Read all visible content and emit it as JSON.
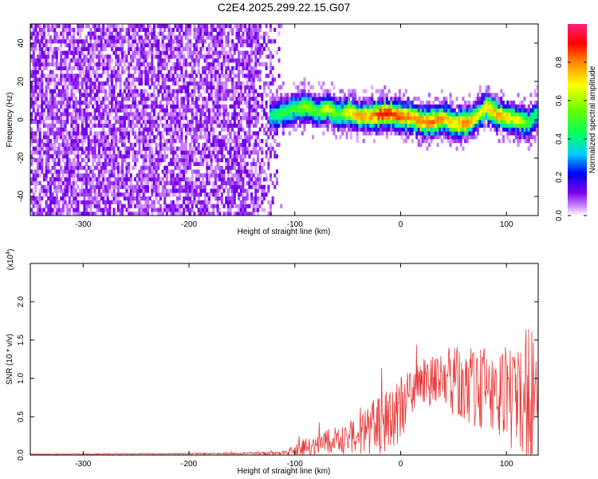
{
  "figure_title": "C2E4.2025.299.22.15.G07",
  "chart_data": [
    {
      "type": "heatmap",
      "title": "C2E4.2025.299.22.15.G07",
      "xlabel": "Height of straight line (km)",
      "ylabel": "Frequency (Hz)",
      "xlim": [
        -350,
        130
      ],
      "ylim": [
        -50,
        50
      ],
      "xticks": [
        -300,
        -200,
        -100,
        0,
        100
      ],
      "xtick_labels": [
        "-300",
        "-200",
        "-100",
        "0",
        "100"
      ],
      "yticks": [
        -40,
        -20,
        0,
        20,
        40
      ],
      "ytick_labels": [
        "-40",
        "-20",
        "0",
        "20",
        "40"
      ],
      "noise_region_x": [
        -350,
        -110
      ],
      "ridge": {
        "name": "signal ridge",
        "x": [
          -125,
          -110,
          -100,
          -90,
          -80,
          -70,
          -60,
          -50,
          -40,
          -30,
          -20,
          -10,
          0,
          10,
          20,
          30,
          40,
          50,
          60,
          70,
          80,
          90,
          100,
          110,
          120,
          130
        ],
        "frequency": [
          1,
          3,
          5,
          6,
          3,
          5,
          2,
          3,
          1,
          1,
          2,
          2,
          1,
          0,
          -2,
          -2,
          0,
          -3,
          -3,
          0,
          6,
          2,
          0,
          -1,
          -3,
          3
        ],
        "amplitude": [
          0.4,
          0.5,
          0.5,
          0.6,
          0.5,
          0.7,
          0.5,
          0.7,
          0.8,
          0.8,
          0.9,
          0.9,
          0.85,
          0.8,
          0.8,
          0.85,
          0.8,
          0.7,
          0.85,
          0.7,
          0.7,
          0.8,
          0.7,
          0.7,
          0.5,
          0.4
        ]
      },
      "colorbar": {
        "label": "Normalized spectral amplitude",
        "range": [
          0,
          1
        ],
        "ticks": [
          0.0,
          0.2,
          0.4,
          0.6,
          0.8
        ],
        "tick_labels": [
          "0.0",
          "0.2",
          "0.4",
          "0.6",
          "0.8"
        ]
      }
    },
    {
      "type": "line",
      "xlabel": "Height of straight line (km)",
      "ylabel": "SNR (10 * v/v)",
      "y_multiplier": "(x10",
      "y_multiplier_exp": "4",
      "y_multiplier_close": ")",
      "xlim": [
        -350,
        130
      ],
      "ylim": [
        0,
        25000
      ],
      "xticks": [
        -300,
        -200,
        -100,
        0,
        100
      ],
      "xtick_labels": [
        "-300",
        "-200",
        "-100",
        "0",
        "100"
      ],
      "yticks": [
        0,
        5000,
        10000,
        15000,
        20000
      ],
      "ytick_labels": [
        "0.0",
        "0.5",
        "1.0",
        "1.5",
        "2.0"
      ],
      "series": [
        {
          "name": "SNR",
          "color": "#e83a3a",
          "x": [
            -350,
            -250,
            -150,
            -110,
            -100,
            -90,
            -80,
            -60,
            -40,
            -20,
            0,
            20,
            40,
            50,
            60,
            80,
            100,
            110,
            120,
            130
          ],
          "baseline": [
            100,
            150,
            200,
            250,
            400,
            800,
            1200,
            2000,
            2600,
            4000,
            6000,
            9000,
            10500,
            9500,
            8500,
            9000,
            8000,
            7000,
            8000,
            9000
          ],
          "fluctuation": [
            80,
            100,
            150,
            400,
            1200,
            1800,
            2000,
            2500,
            3000,
            5000,
            5500,
            4000,
            4000,
            6000,
            6500,
            7000,
            8000,
            9000,
            11000,
            11000
          ]
        }
      ]
    }
  ],
  "colors": {
    "axis": "#000000",
    "line": "#e83a3a",
    "background": "#ffffff"
  }
}
